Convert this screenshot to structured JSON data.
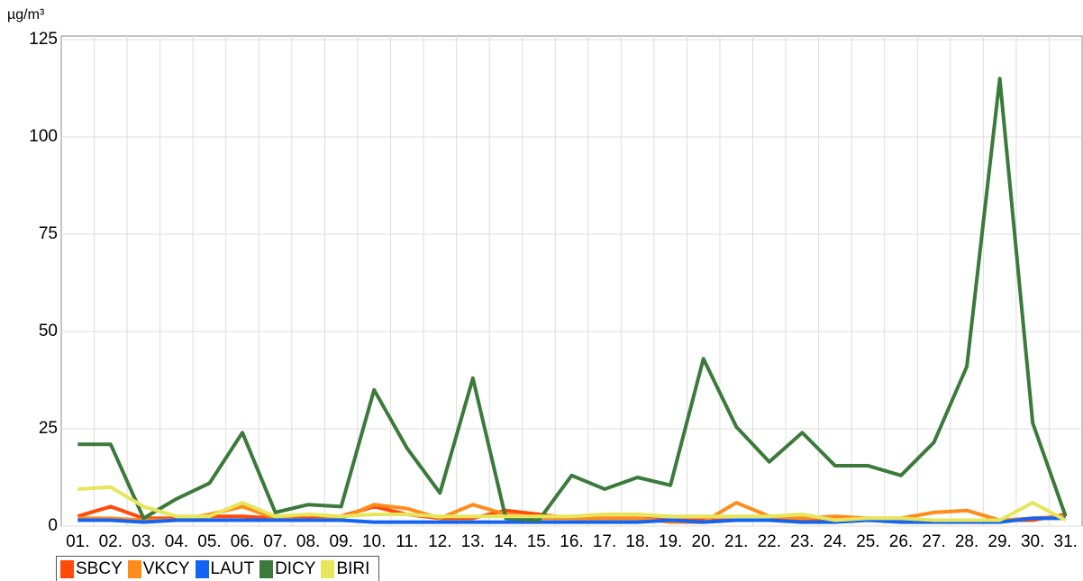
{
  "chart_data": {
    "type": "line",
    "y_unit": "µg/m³",
    "categories": [
      "01.",
      "02.",
      "03.",
      "04.",
      "05.",
      "06.",
      "07.",
      "08.",
      "09.",
      "10.",
      "11.",
      "12.",
      "13.",
      "14.",
      "15.",
      "16.",
      "17.",
      "18.",
      "19.",
      "20.",
      "21.",
      "22.",
      "23.",
      "24.",
      "25.",
      "26.",
      "27.",
      "28.",
      "29.",
      "30.",
      "31."
    ],
    "ylim": [
      0,
      125
    ],
    "yticks": [
      0,
      25,
      50,
      75,
      100,
      125
    ],
    "grid": true,
    "series": [
      {
        "name": "SBCY",
        "color": "#ff4a0a",
        "values": [
          2.5,
          5,
          2,
          2,
          2.5,
          2.5,
          2,
          2,
          2.5,
          5,
          3,
          2,
          2,
          4,
          3,
          2,
          2,
          2,
          1.5,
          1.5,
          1.5,
          1.5,
          1.5,
          1.5,
          1.5,
          1.5,
          1.5,
          1.5,
          1.5,
          1.5,
          3
        ]
      },
      {
        "name": "VKCY",
        "color": "#ff8c1a",
        "values": [
          2,
          2,
          1.5,
          1.5,
          3,
          5,
          2,
          1.5,
          2,
          5.5,
          4.5,
          2,
          5.5,
          3,
          2,
          2,
          2,
          2,
          1,
          1,
          6,
          2.5,
          2,
          2.5,
          2,
          2,
          3.5,
          4,
          1.5,
          2,
          2.5
        ]
      },
      {
        "name": "LAUT",
        "color": "#1464f4",
        "values": [
          1.5,
          1.5,
          1,
          1.5,
          1.5,
          1.5,
          1.5,
          1.5,
          1.5,
          1,
          1,
          1,
          1,
          1,
          1,
          1,
          1,
          1,
          1.5,
          1,
          1.5,
          1.5,
          1,
          1,
          1.5,
          1,
          1,
          1,
          1,
          2,
          2
        ]
      },
      {
        "name": "DICY",
        "color": "#3b7a3b",
        "values": [
          21,
          21,
          2,
          7,
          11,
          24,
          3.5,
          5.5,
          5,
          35,
          20,
          8.5,
          38,
          2,
          1.5,
          13,
          9.5,
          12.5,
          10.5,
          43,
          25.5,
          16.5,
          24,
          15.5,
          15.5,
          13,
          21.5,
          41,
          115,
          26.5,
          2.5
        ]
      },
      {
        "name": "BIRI",
        "color": "#e6e65a",
        "values": [
          9.5,
          10,
          5,
          2.5,
          2.5,
          6,
          2.5,
          3,
          2.5,
          3,
          3,
          2.5,
          2.5,
          2.5,
          2.5,
          2.5,
          3,
          3,
          2.5,
          2.5,
          2.5,
          2.5,
          3,
          1.5,
          2,
          2,
          1.5,
          1.5,
          1.5,
          6,
          1.5
        ]
      }
    ]
  }
}
